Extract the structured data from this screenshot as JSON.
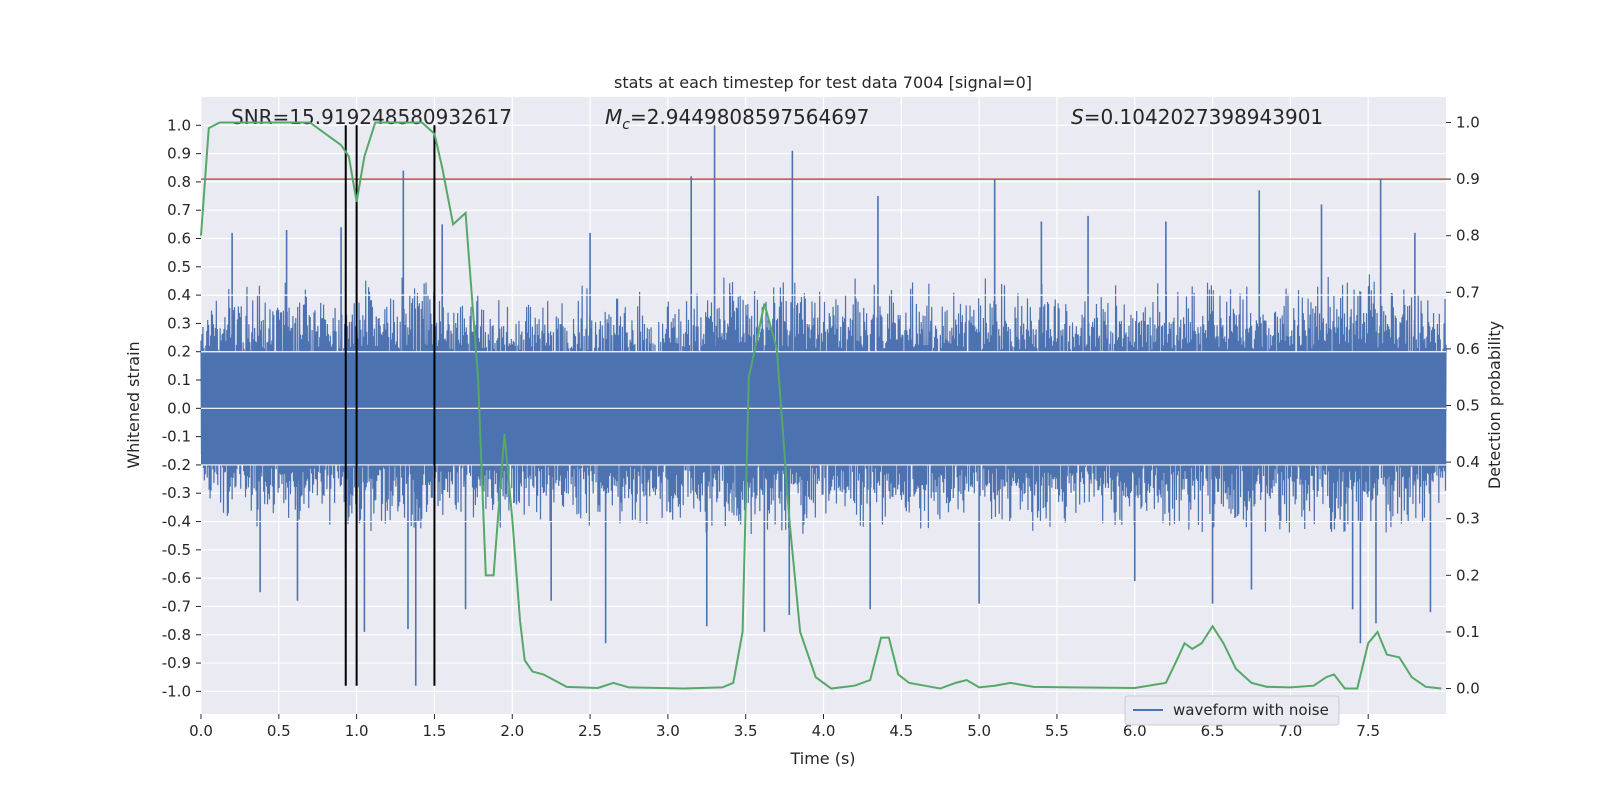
{
  "chart_data": {
    "type": "line",
    "title": "stats at each timestep for test data 7004 [signal=0]",
    "xlabel": "Time (s)",
    "ylabel_left": "Whitened strain",
    "ylabel_right": "Detection probability",
    "xlim": [
      0.0,
      8.0
    ],
    "ylim_left": [
      -1.08,
      1.1
    ],
    "ylim_right": [
      -0.045,
      1.045
    ],
    "x_ticks": [
      "0.0",
      "0.5",
      "1.0",
      "1.5",
      "2.0",
      "2.5",
      "3.0",
      "3.5",
      "4.0",
      "4.5",
      "5.0",
      "5.5",
      "6.0",
      "6.5",
      "7.0",
      "7.5"
    ],
    "y_ticks_left": [
      "1.0",
      "0.9",
      "0.8",
      "0.7",
      "0.6",
      "0.5",
      "0.4",
      "0.3",
      "0.2",
      "0.1",
      "0.0",
      "-0.1",
      "-0.2",
      "-0.3",
      "-0.4",
      "-0.5",
      "-0.6",
      "-0.7",
      "-0.8",
      "-0.9",
      "-1.0"
    ],
    "y_ticks_right": [
      "0.0",
      "0.1",
      "0.2",
      "0.3",
      "0.4",
      "0.5",
      "0.6",
      "0.7",
      "0.8",
      "0.9",
      "1.0"
    ],
    "grid": true,
    "legend": {
      "placement": "lower-right",
      "entries": [
        "waveform with noise"
      ]
    },
    "annotations": {
      "snr": "SNR=15.919248580932617",
      "mc_symbol": "M",
      "mc_sub": "c",
      "mc_value": "=2.9449808597564697",
      "s_symbol": "S",
      "s_value": "=0.1042027398943901"
    },
    "threshold": {
      "axis": "right",
      "y": 0.9,
      "color": "#c44e52"
    },
    "vlines": [
      0.93,
      1.0,
      1.5
    ],
    "series": [
      {
        "name": "waveform with noise",
        "axis": "left",
        "color": "#4c72b0",
        "envelope": {
          "x": [
            0.0,
            0.25,
            0.5,
            0.75,
            1.0,
            1.25,
            1.5,
            1.75,
            2.0,
            2.5,
            3.0,
            3.5,
            4.0,
            4.5,
            5.0,
            5.5,
            6.0,
            6.5,
            7.0,
            7.5,
            8.0
          ],
          "upper": [
            0.4,
            0.45,
            0.5,
            0.42,
            0.48,
            0.5,
            0.48,
            0.45,
            0.4,
            0.45,
            0.42,
            0.5,
            0.48,
            0.45,
            0.48,
            0.44,
            0.45,
            0.48,
            0.46,
            0.52,
            0.4
          ],
          "lower": [
            -0.4,
            -0.45,
            -0.48,
            -0.42,
            -0.48,
            -0.5,
            -0.48,
            -0.45,
            -0.42,
            -0.45,
            -0.44,
            -0.48,
            -0.45,
            -0.45,
            -0.46,
            -0.45,
            -0.46,
            -0.48,
            -0.46,
            -0.5,
            -0.4
          ]
        },
        "peaks": [
          [
            0.2,
            0.62
          ],
          [
            0.38,
            -0.65
          ],
          [
            0.55,
            0.63
          ],
          [
            0.62,
            -0.68
          ],
          [
            0.9,
            0.64
          ],
          [
            0.93,
            -0.57
          ],
          [
            1.0,
            0.73
          ],
          [
            1.05,
            -0.79
          ],
          [
            1.3,
            0.84
          ],
          [
            1.33,
            -0.78
          ],
          [
            1.38,
            -0.98
          ],
          [
            1.55,
            0.65
          ],
          [
            1.7,
            -0.71
          ],
          [
            2.25,
            -0.68
          ],
          [
            2.6,
            -0.83
          ],
          [
            2.5,
            0.62
          ],
          [
            3.15,
            0.82
          ],
          [
            3.3,
            1.0
          ],
          [
            3.25,
            -0.77
          ],
          [
            3.62,
            -0.79
          ],
          [
            3.8,
            0.91
          ],
          [
            3.78,
            -0.73
          ],
          [
            4.35,
            0.75
          ],
          [
            4.3,
            -0.71
          ],
          [
            5.1,
            0.81
          ],
          [
            5.0,
            -0.69
          ],
          [
            5.4,
            0.66
          ],
          [
            5.7,
            0.68
          ],
          [
            6.0,
            -0.61
          ],
          [
            6.2,
            0.66
          ],
          [
            6.5,
            -0.69
          ],
          [
            6.8,
            0.77
          ],
          [
            6.75,
            -0.64
          ],
          [
            7.2,
            0.72
          ],
          [
            7.4,
            -0.71
          ],
          [
            7.45,
            -0.83
          ],
          [
            7.58,
            0.81
          ],
          [
            7.55,
            -0.76
          ],
          [
            7.8,
            0.62
          ],
          [
            7.9,
            -0.72
          ]
        ]
      },
      {
        "name": "",
        "axis": "right",
        "color": "#55a868",
        "x": [
          0.0,
          0.05,
          0.12,
          0.3,
          0.5,
          0.7,
          0.8,
          0.9,
          0.95,
          1.0,
          1.05,
          1.12,
          1.3,
          1.42,
          1.5,
          1.55,
          1.62,
          1.7,
          1.78,
          1.83,
          1.88,
          1.95,
          2.0,
          2.05,
          2.08,
          2.13,
          2.2,
          2.35,
          2.55,
          2.65,
          2.75,
          2.95,
          3.1,
          3.35,
          3.42,
          3.48,
          3.52,
          3.56,
          3.62,
          3.7,
          3.78,
          3.85,
          3.95,
          4.05,
          4.2,
          4.3,
          4.37,
          4.42,
          4.48,
          4.55,
          4.65,
          4.75,
          4.85,
          4.92,
          5.0,
          5.1,
          5.2,
          5.35,
          5.6,
          6.0,
          6.2,
          6.27,
          6.32,
          6.37,
          6.43,
          6.5,
          6.57,
          6.65,
          6.75,
          6.85,
          7.0,
          7.15,
          7.23,
          7.28,
          7.35,
          7.43,
          7.5,
          7.56,
          7.62,
          7.7,
          7.78,
          7.87,
          7.97
        ],
        "y": [
          0.8,
          0.99,
          1.0,
          1.0,
          1.0,
          1.0,
          0.98,
          0.96,
          0.94,
          0.86,
          0.94,
          1.0,
          1.0,
          1.0,
          0.98,
          0.92,
          0.82,
          0.84,
          0.55,
          0.2,
          0.2,
          0.45,
          0.3,
          0.12,
          0.05,
          0.03,
          0.025,
          0.003,
          0.001,
          0.01,
          0.002,
          0.001,
          0.0,
          0.002,
          0.01,
          0.1,
          0.55,
          0.6,
          0.68,
          0.6,
          0.3,
          0.1,
          0.02,
          0.0,
          0.005,
          0.015,
          0.09,
          0.09,
          0.025,
          0.01,
          0.005,
          0.0,
          0.01,
          0.015,
          0.002,
          0.005,
          0.01,
          0.003,
          0.002,
          0.001,
          0.01,
          0.05,
          0.08,
          0.07,
          0.08,
          0.11,
          0.08,
          0.035,
          0.01,
          0.003,
          0.002,
          0.005,
          0.02,
          0.025,
          0.0,
          0.0,
          0.08,
          0.1,
          0.06,
          0.055,
          0.02,
          0.003,
          0.0
        ]
      }
    ]
  }
}
